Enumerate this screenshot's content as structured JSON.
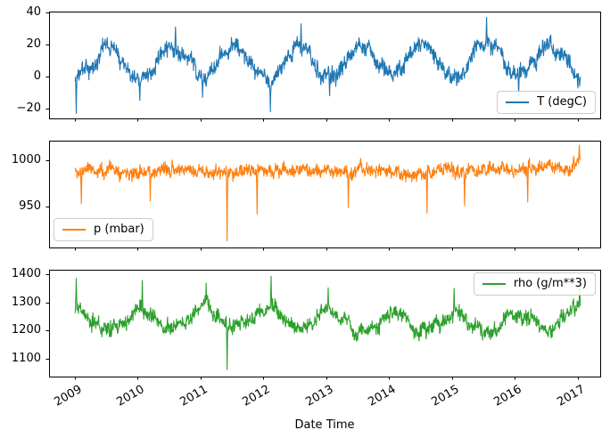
{
  "figure": {
    "background": "#ffffff",
    "border_color": "#000000"
  },
  "x_axis": {
    "label": "Date Time",
    "tick_values": [
      2009,
      2010,
      2011,
      2012,
      2013,
      2014,
      2015,
      2016,
      2017
    ],
    "tick_labels": [
      "2009",
      "2010",
      "2011",
      "2012",
      "2013",
      "2014",
      "2015",
      "2016",
      "2017"
    ],
    "range": [
      2008.589,
      2017.355
    ]
  },
  "chart_data": [
    {
      "type": "line",
      "series_name": "T (degC)",
      "color": "#1f77b4",
      "legend": {
        "label": "T (degC)",
        "position": "lower right"
      },
      "x_range": [
        2008.589,
        2017.355
      ],
      "data_x_range": [
        2009.005,
        2017.04
      ],
      "ylim": [
        -26.1,
        40.6
      ],
      "yticks": [
        40,
        20,
        0,
        -20
      ],
      "ytick_labels": [
        "40",
        "20",
        "0",
        "−20"
      ],
      "grid": false,
      "seasonal_mean_anchors": [
        [
          2009.0,
          -1
        ],
        [
          2009.1,
          1
        ],
        [
          2009.55,
          19
        ],
        [
          2010.04,
          -2
        ],
        [
          2010.55,
          20
        ],
        [
          2011.04,
          0
        ],
        [
          2011.55,
          20
        ],
        [
          2012.1,
          -3
        ],
        [
          2012.55,
          20
        ],
        [
          2013.04,
          0
        ],
        [
          2013.55,
          20
        ],
        [
          2014.04,
          2
        ],
        [
          2014.55,
          20
        ],
        [
          2015.04,
          2
        ],
        [
          2015.55,
          22
        ],
        [
          2016.04,
          1
        ],
        [
          2016.55,
          20
        ],
        [
          2017.04,
          0
        ]
      ],
      "noise_half_band": 8,
      "spikes": [
        [
          2009.02,
          -23
        ],
        [
          2010.03,
          -15
        ],
        [
          2010.6,
          31
        ],
        [
          2011.03,
          -13
        ],
        [
          2012.11,
          -22
        ],
        [
          2012.6,
          33
        ],
        [
          2013.05,
          -12
        ],
        [
          2015.55,
          37
        ],
        [
          2016.06,
          -12
        ]
      ],
      "seed": 3
    },
    {
      "type": "line",
      "series_name": "p (mbar)",
      "color": "#ff7f0e",
      "legend": {
        "label": "p (mbar)",
        "position": "lower left"
      },
      "x_range": [
        2008.589,
        2017.355
      ],
      "data_x_range": [
        2009.005,
        2017.04
      ],
      "ylim": [
        906,
        1021
      ],
      "yticks": [
        1000,
        950
      ],
      "ytick_labels": [
        "1000",
        "950"
      ],
      "grid": false,
      "seasonal_mean_anchors": [
        [
          2009.0,
          988
        ],
        [
          2010.0,
          989
        ],
        [
          2011.0,
          988
        ],
        [
          2012.0,
          988
        ],
        [
          2013.0,
          989
        ],
        [
          2014.0,
          988
        ],
        [
          2015.0,
          989
        ],
        [
          2016.0,
          989
        ],
        [
          2016.8,
          991
        ],
        [
          2017.04,
          1002
        ]
      ],
      "noise_half_band": 11,
      "spikes": [
        [
          2009.1,
          953
        ],
        [
          2010.2,
          956
        ],
        [
          2011.42,
          913
        ],
        [
          2011.9,
          942
        ],
        [
          2013.35,
          949
        ],
        [
          2014.6,
          943
        ],
        [
          2015.2,
          951
        ],
        [
          2016.2,
          955
        ],
        [
          2017.02,
          1016
        ]
      ],
      "seed": 11
    },
    {
      "type": "line",
      "series_name": "rho (g/m**3)",
      "color": "#2ca02c",
      "legend": {
        "label": "rho (g/m**3)",
        "position": "upper right"
      },
      "x_range": [
        2008.589,
        2017.355
      ],
      "data_x_range": [
        2009.005,
        2017.04
      ],
      "ylim": [
        1037,
        1416
      ],
      "yticks": [
        1400,
        1300,
        1200,
        1100
      ],
      "ytick_labels": [
        "1400",
        "1300",
        "1200",
        "1100"
      ],
      "grid": false,
      "xlabel": "Date Time",
      "seasonal_mean_anchors": [
        [
          2009.0,
          1292
        ],
        [
          2009.55,
          1200
        ],
        [
          2010.07,
          1270
        ],
        [
          2010.55,
          1200
        ],
        [
          2011.08,
          1278
        ],
        [
          2011.55,
          1208
        ],
        [
          2012.1,
          1285
        ],
        [
          2012.55,
          1200
        ],
        [
          2013.04,
          1262
        ],
        [
          2013.55,
          1192
        ],
        [
          2014.04,
          1260
        ],
        [
          2014.55,
          1196
        ],
        [
          2015.04,
          1262
        ],
        [
          2015.55,
          1190
        ],
        [
          2016.04,
          1262
        ],
        [
          2016.55,
          1200
        ],
        [
          2017.04,
          1302
        ]
      ],
      "noise_half_band": 42,
      "spikes": [
        [
          2009.02,
          1385
        ],
        [
          2010.07,
          1378
        ],
        [
          2011.09,
          1368
        ],
        [
          2011.42,
          1062
        ],
        [
          2012.12,
          1393
        ],
        [
          2013.03,
          1352
        ],
        [
          2015.03,
          1350
        ],
        [
          2017.03,
          1350
        ]
      ],
      "seed": 27
    }
  ]
}
